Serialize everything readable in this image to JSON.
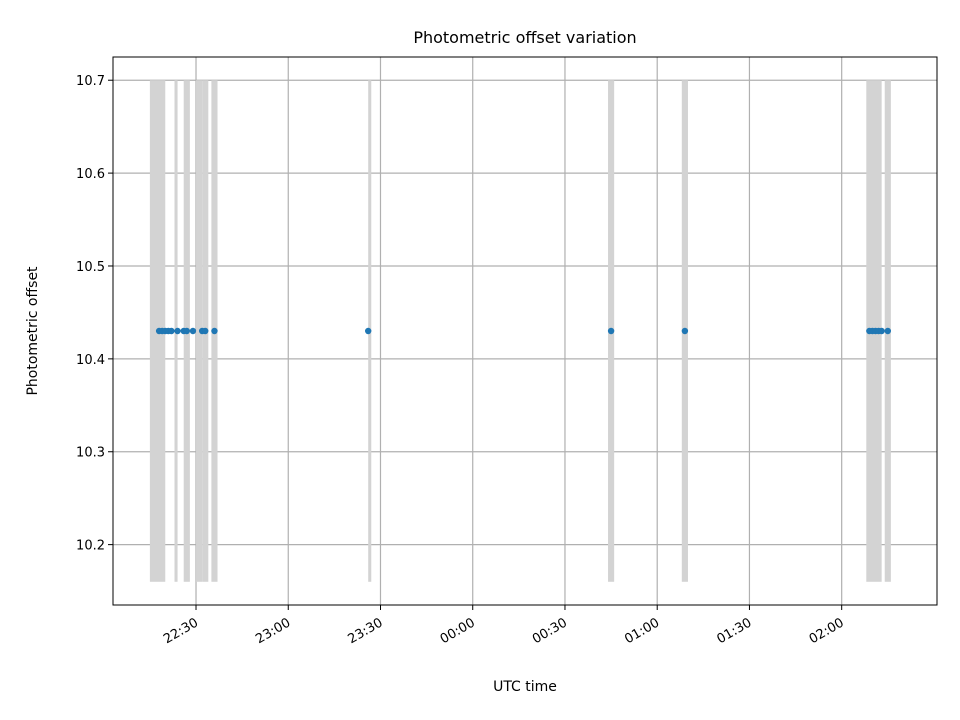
{
  "chart_data": {
    "type": "scatter",
    "title": "Photometric offset variation",
    "xlabel": "UTC time",
    "ylabel": "Photometric offset",
    "xlim": [
      "22:03",
      "02:31"
    ],
    "ylim": [
      10.135,
      10.725
    ],
    "x_ticks": [
      "22:30",
      "23:00",
      "23:30",
      "00:00",
      "00:30",
      "01:00",
      "01:30",
      "02:00"
    ],
    "y_ticks": [
      "10.2",
      "10.3",
      "10.4",
      "10.5",
      "10.6",
      "10.7"
    ],
    "grid": true,
    "legend": "none",
    "series": [
      {
        "color": "#1f77b4",
        "x": [
          "22:18",
          "22:19",
          "22:20",
          "22:21",
          "22:22",
          "22:24",
          "22:26",
          "22:27",
          "22:29",
          "22:32",
          "22:33",
          "22:36",
          "23:26",
          "00:45",
          "01:09",
          "02:09",
          "02:10",
          "02:11",
          "02:12",
          "02:13",
          "02:15"
        ],
        "y": [
          10.43,
          10.43,
          10.43,
          10.43,
          10.43,
          10.43,
          10.43,
          10.43,
          10.43,
          10.43,
          10.43,
          10.43,
          10.43,
          10.43,
          10.43,
          10.43,
          10.43,
          10.43,
          10.43,
          10.43,
          10.43
        ]
      }
    ],
    "shaded_intervals": {
      "color": "#d3d3d3",
      "y_range": [
        10.16,
        10.7
      ],
      "x_ranges": [
        [
          "22:15",
          "22:20"
        ],
        [
          "22:23",
          "22:24"
        ],
        [
          "22:26",
          "22:28"
        ],
        [
          "22:30",
          "22:32"
        ],
        [
          "22:32",
          "22:34"
        ],
        [
          "22:35",
          "22:37"
        ],
        [
          "23:26",
          "23:27"
        ],
        [
          "00:44",
          "00:46"
        ],
        [
          "01:08",
          "01:10"
        ],
        [
          "02:08",
          "02:13"
        ],
        [
          "02:14",
          "02:16"
        ]
      ]
    }
  }
}
